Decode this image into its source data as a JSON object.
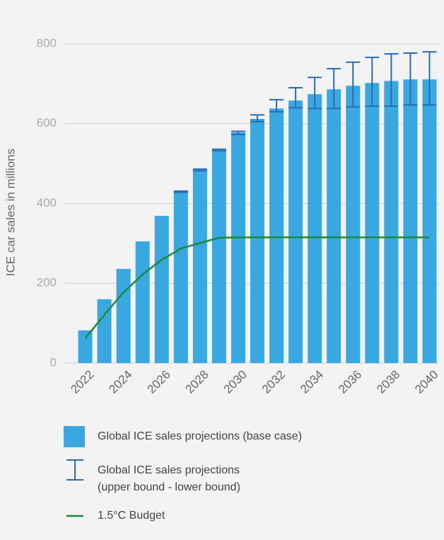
{
  "chart_data": {
    "type": "bar",
    "y_label": "ICE car sales in millions",
    "categories": [
      "2022",
      null,
      "2024",
      null,
      "2026",
      null,
      "2028",
      null,
      "2030",
      null,
      "2032",
      null,
      "2034",
      null,
      "2036",
      null,
      "2038",
      null,
      "2040"
    ],
    "ylim": [
      0,
      800
    ],
    "yticks": [
      0,
      200,
      400,
      600,
      800
    ],
    "grid": true,
    "series": [
      {
        "name": "Global ICE sales projections (base case)",
        "type": "bar",
        "color": "#3aa8e0",
        "values": [
          82,
          160,
          236,
          305,
          369,
          429,
          484,
          534,
          578,
          612,
          638,
          658,
          674,
          686,
          695,
          702,
          707,
          711,
          711
        ]
      },
      {
        "name": "Global ICE sales projections (upper bound - lower bound)",
        "type": "errorbar",
        "color": "#2a6cb3",
        "upper": [
          null,
          null,
          null,
          null,
          null,
          431,
          486,
          536,
          581,
          622,
          660,
          690,
          716,
          738,
          754,
          766,
          775,
          777,
          780
        ],
        "lower": [
          null,
          null,
          null,
          null,
          null,
          428,
          482,
          532,
          573,
          605,
          630,
          640,
          638,
          638,
          642,
          644,
          644,
          647,
          647
        ]
      },
      {
        "name": "1.5°C Budget",
        "type": "line",
        "color": "#1a8a3c",
        "values": [
          62,
          121,
          177,
          222,
          259,
          287,
          301,
          314,
          315,
          315,
          315,
          315,
          315,
          315,
          315,
          315,
          315,
          315,
          315
        ]
      }
    ]
  }
}
